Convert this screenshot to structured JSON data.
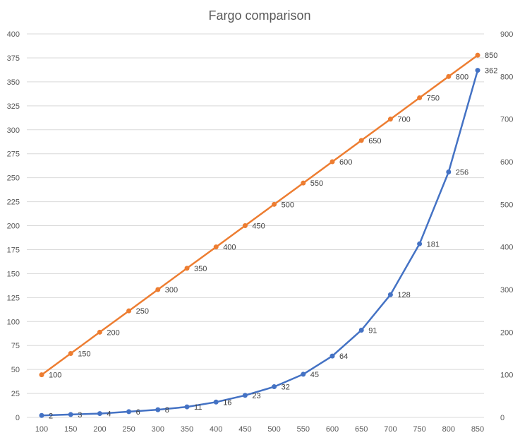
{
  "chart_data": {
    "type": "line",
    "title": "Fargo comparison",
    "x": [
      100,
      150,
      200,
      250,
      300,
      350,
      400,
      450,
      500,
      550,
      600,
      650,
      700,
      750,
      800,
      850
    ],
    "x_tick_labels": [
      "100",
      "150",
      "200",
      "250",
      "300",
      "350",
      "400",
      "450",
      "500",
      "550",
      "600",
      "650",
      "700",
      "750",
      "800",
      "850"
    ],
    "y_left": {
      "ylim": [
        0,
        400
      ],
      "ticks": [
        0,
        25,
        50,
        75,
        100,
        125,
        150,
        175,
        200,
        225,
        250,
        275,
        300,
        325,
        350,
        375,
        400
      ],
      "tick_labels": [
        "0",
        "25",
        "50",
        "75",
        "100",
        "125",
        "150",
        "175",
        "200",
        "225",
        "250",
        "275",
        "300",
        "325",
        "350",
        "375",
        "400"
      ]
    },
    "y_right": {
      "ylim": [
        0,
        900
      ],
      "ticks": [
        0,
        100,
        200,
        300,
        400,
        500,
        600,
        700,
        800,
        900
      ],
      "tick_labels": [
        "0",
        "100",
        "200",
        "300",
        "400",
        "500",
        "600",
        "700",
        "800",
        "900"
      ]
    },
    "grid": true,
    "legend": "none",
    "series": [
      {
        "axis": "left",
        "color": "#4472c4",
        "values": [
          2,
          3,
          4,
          6,
          8,
          11,
          16,
          23,
          32,
          45,
          64,
          91,
          128,
          181,
          256,
          362
        ],
        "labels": [
          "2",
          "3",
          "4",
          "6",
          "8",
          "11",
          "16",
          "23",
          "32",
          "45",
          "64",
          "91",
          "128",
          "181",
          "256",
          "362"
        ]
      },
      {
        "axis": "right",
        "color": "#ed7d31",
        "values": [
          100,
          150,
          200,
          250,
          300,
          350,
          400,
          450,
          500,
          550,
          600,
          650,
          700,
          750,
          800,
          850
        ],
        "labels": [
          "100",
          "150",
          "200",
          "250",
          "300",
          "350",
          "400",
          "450",
          "500",
          "550",
          "600",
          "650",
          "700",
          "750",
          "800",
          "850"
        ]
      }
    ]
  }
}
